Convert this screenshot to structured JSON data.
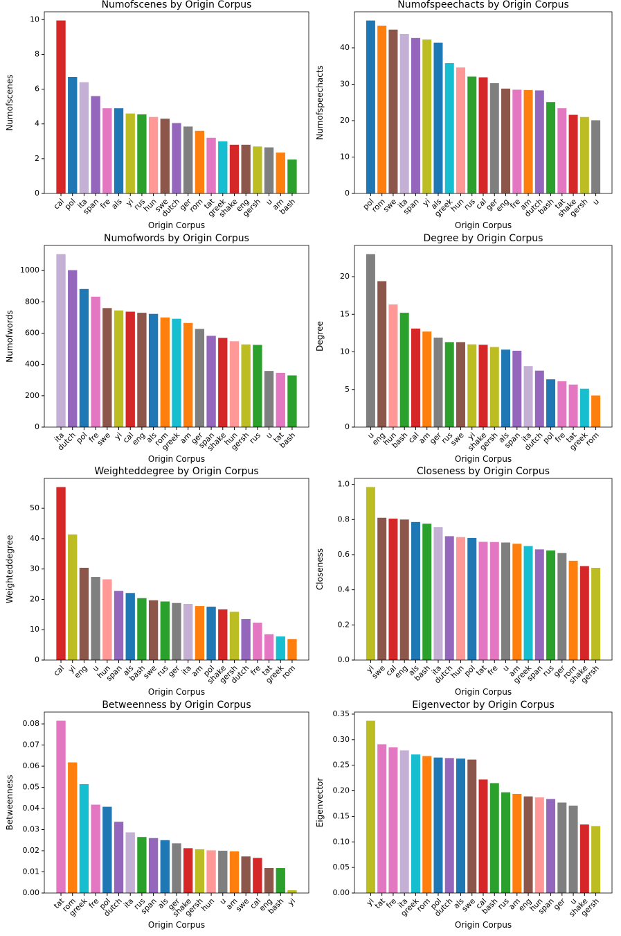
{
  "chart_data": [
    {
      "type": "bar",
      "title": "Numofscenes by Origin Corpus",
      "xlabel": "Origin Corpus",
      "ylabel": "Numofscenes",
      "categories": [
        "cal",
        "pol",
        "ita",
        "span",
        "fre",
        "als",
        "yi",
        "rus",
        "hun",
        "swe",
        "dutch",
        "ger",
        "rom",
        "tat",
        "greek",
        "shake",
        "eng",
        "gersh",
        "u",
        "am",
        "bash"
      ],
      "values": [
        9.95,
        6.7,
        6.4,
        5.6,
        4.9,
        4.9,
        4.6,
        4.55,
        4.4,
        4.3,
        4.05,
        3.85,
        3.6,
        3.2,
        3.0,
        2.8,
        2.8,
        2.7,
        2.65,
        2.35,
        1.95
      ],
      "colors": [
        "#d62728",
        "#1f77b4",
        "#c5b0d5",
        "#9467bd",
        "#e377c2",
        "#1f77b4",
        "#bcbd22",
        "#2ca02c",
        "#ff9896",
        "#8c564b",
        "#9467bd",
        "#7f7f7f",
        "#ff7f0e",
        "#e377c2",
        "#17becf",
        "#d62728",
        "#8c564b",
        "#bcbd22",
        "#7f7f7f",
        "#ff7f0e",
        "#2ca02c"
      ],
      "ylim": [
        0,
        10.45
      ],
      "yticks": [
        0,
        2,
        4,
        6,
        8,
        10
      ]
    },
    {
      "type": "bar",
      "title": "Numofspeechacts by Origin Corpus",
      "xlabel": "Origin Corpus",
      "ylabel": "Numofspeechacts",
      "categories": [
        "pol",
        "rom",
        "swe",
        "ita",
        "span",
        "yi",
        "als",
        "greek",
        "hun",
        "rus",
        "cal",
        "ger",
        "eng",
        "fre",
        "am",
        "dutch",
        "bash",
        "tat",
        "shake",
        "gersh",
        "u"
      ],
      "values": [
        47.5,
        46.1,
        45.0,
        43.8,
        42.7,
        42.3,
        41.4,
        35.8,
        34.6,
        32.1,
        31.9,
        30.3,
        28.8,
        28.5,
        28.4,
        28.3,
        25.1,
        23.4,
        21.6,
        21.0,
        20.1
      ],
      "colors": [
        "#1f77b4",
        "#ff7f0e",
        "#8c564b",
        "#c5b0d5",
        "#9467bd",
        "#bcbd22",
        "#1f77b4",
        "#17becf",
        "#ff9896",
        "#2ca02c",
        "#d62728",
        "#7f7f7f",
        "#8c564b",
        "#e377c2",
        "#ff7f0e",
        "#9467bd",
        "#2ca02c",
        "#e377c2",
        "#d62728",
        "#bcbd22",
        "#7f7f7f"
      ],
      "ylim": [
        0,
        49.9
      ],
      "yticks": [
        0,
        10,
        20,
        30,
        40
      ]
    },
    {
      "type": "bar",
      "title": "Numofwords by Origin Corpus",
      "xlabel": "Origin Corpus",
      "ylabel": "Numofwords",
      "categories": [
        "ita",
        "dutch",
        "pol",
        "fre",
        "swe",
        "yi",
        "cal",
        "eng",
        "als",
        "rom",
        "greek",
        "am",
        "ger",
        "span",
        "shake",
        "hun",
        "gersh",
        "rus",
        "u",
        "tat",
        "bash"
      ],
      "values": [
        1105,
        1002,
        882,
        833,
        760,
        745,
        737,
        730,
        723,
        700,
        692,
        665,
        627,
        583,
        570,
        548,
        528,
        525,
        358,
        346,
        330
      ],
      "colors": [
        "#c5b0d5",
        "#9467bd",
        "#1f77b4",
        "#e377c2",
        "#8c564b",
        "#bcbd22",
        "#d62728",
        "#8c564b",
        "#1f77b4",
        "#ff7f0e",
        "#17becf",
        "#ff7f0e",
        "#7f7f7f",
        "#9467bd",
        "#d62728",
        "#ff9896",
        "#bcbd22",
        "#2ca02c",
        "#7f7f7f",
        "#e377c2",
        "#2ca02c"
      ],
      "ylim": [
        0,
        1160
      ],
      "yticks": [
        0,
        200,
        400,
        600,
        800,
        1000
      ]
    },
    {
      "type": "bar",
      "title": "Degree by Origin Corpus",
      "xlabel": "Origin Corpus",
      "ylabel": "Degree",
      "categories": [
        "u",
        "eng",
        "hun",
        "bash",
        "cal",
        "am",
        "ger",
        "rus",
        "swe",
        "yi",
        "shake",
        "gersh",
        "als",
        "span",
        "ita",
        "dutch",
        "pol",
        "fre",
        "tat",
        "greek",
        "rom"
      ],
      "values": [
        23.0,
        19.4,
        16.3,
        15.2,
        13.1,
        12.7,
        11.9,
        11.3,
        11.3,
        11.0,
        10.95,
        10.65,
        10.3,
        10.15,
        8.1,
        7.5,
        6.35,
        6.1,
        5.65,
        5.1,
        4.2
      ],
      "colors": [
        "#7f7f7f",
        "#8c564b",
        "#ff9896",
        "#2ca02c",
        "#d62728",
        "#ff7f0e",
        "#7f7f7f",
        "#2ca02c",
        "#8c564b",
        "#bcbd22",
        "#d62728",
        "#bcbd22",
        "#1f77b4",
        "#9467bd",
        "#c5b0d5",
        "#9467bd",
        "#1f77b4",
        "#e377c2",
        "#e377c2",
        "#17becf",
        "#ff7f0e"
      ],
      "ylim": [
        0,
        24.15
      ],
      "yticks": [
        0,
        5,
        10,
        15,
        20
      ]
    },
    {
      "type": "bar",
      "title": "Weighteddegree by Origin Corpus",
      "xlabel": "Origin Corpus",
      "ylabel": "Weighteddegree",
      "categories": [
        "cal",
        "yi",
        "eng",
        "u",
        "hun",
        "span",
        "als",
        "bash",
        "swe",
        "rus",
        "ger",
        "ita",
        "am",
        "pol",
        "shake",
        "gersh",
        "dutch",
        "fre",
        "tat",
        "greek",
        "rom"
      ],
      "values": [
        57.0,
        41.4,
        30.4,
        27.4,
        26.6,
        22.8,
        22.1,
        20.4,
        19.7,
        19.3,
        18.8,
        18.5,
        17.8,
        17.6,
        16.7,
        15.9,
        13.5,
        12.3,
        8.5,
        7.8,
        6.9
      ],
      "colors": [
        "#d62728",
        "#bcbd22",
        "#8c564b",
        "#7f7f7f",
        "#ff9896",
        "#9467bd",
        "#1f77b4",
        "#2ca02c",
        "#8c564b",
        "#2ca02c",
        "#7f7f7f",
        "#c5b0d5",
        "#ff7f0e",
        "#1f77b4",
        "#d62728",
        "#bcbd22",
        "#9467bd",
        "#e377c2",
        "#e377c2",
        "#17becf",
        "#ff7f0e"
      ],
      "ylim": [
        0,
        59.85
      ],
      "yticks": [
        0,
        10,
        20,
        30,
        40,
        50
      ]
    },
    {
      "type": "bar",
      "title": "Closeness by Origin Corpus",
      "xlabel": "Origin Corpus",
      "ylabel": "Closeness",
      "categories": [
        "yi",
        "swe",
        "cal",
        "eng",
        "als",
        "bash",
        "ita",
        "dutch",
        "hun",
        "pol",
        "tat",
        "fre",
        "u",
        "am",
        "greek",
        "span",
        "rus",
        "ger",
        "rom",
        "shake",
        "gersh"
      ],
      "values": [
        0.985,
        0.81,
        0.805,
        0.8,
        0.786,
        0.776,
        0.757,
        0.705,
        0.7,
        0.695,
        0.673,
        0.672,
        0.669,
        0.662,
        0.649,
        0.63,
        0.624,
        0.609,
        0.565,
        0.535,
        0.525
      ],
      "colors": [
        "#bcbd22",
        "#8c564b",
        "#d62728",
        "#8c564b",
        "#1f77b4",
        "#2ca02c",
        "#c5b0d5",
        "#9467bd",
        "#ff9896",
        "#1f77b4",
        "#e377c2",
        "#e377c2",
        "#7f7f7f",
        "#ff7f0e",
        "#17becf",
        "#9467bd",
        "#2ca02c",
        "#7f7f7f",
        "#ff7f0e",
        "#d62728",
        "#bcbd22"
      ],
      "ylim": [
        0,
        1.034
      ],
      "yticks": [
        {
          "value": 0,
          "label": "0.0"
        },
        0.2,
        0.4,
        0.6,
        0.8,
        {
          "value": 1,
          "label": "1.0"
        }
      ]
    },
    {
      "type": "bar",
      "title": "Betweenness by Origin Corpus",
      "xlabel": "Origin Corpus",
      "ylabel": "Betweenness",
      "categories": [
        "tat",
        "rom",
        "greek",
        "fre",
        "pol",
        "dutch",
        "ita",
        "rus",
        "span",
        "als",
        "ger",
        "shake",
        "gersh",
        "hun",
        "u",
        "am",
        "swe",
        "cal",
        "eng",
        "bash",
        "yi"
      ],
      "values": [
        0.0815,
        0.0618,
        0.0515,
        0.0418,
        0.0408,
        0.0337,
        0.0287,
        0.0265,
        0.026,
        0.025,
        0.0235,
        0.0212,
        0.0207,
        0.0202,
        0.02,
        0.0197,
        0.0173,
        0.0166,
        0.0118,
        0.0118,
        0.0013
      ],
      "colors": [
        "#e377c2",
        "#ff7f0e",
        "#17becf",
        "#e377c2",
        "#1f77b4",
        "#9467bd",
        "#c5b0d5",
        "#2ca02c",
        "#9467bd",
        "#1f77b4",
        "#7f7f7f",
        "#d62728",
        "#bcbd22",
        "#ff9896",
        "#7f7f7f",
        "#ff7f0e",
        "#8c564b",
        "#d62728",
        "#8c564b",
        "#2ca02c",
        "#bcbd22"
      ],
      "ylim": [
        0,
        0.0856
      ],
      "yticks": [
        {
          "value": 0,
          "label": "0.00"
        },
        0.01,
        0.02,
        0.03,
        0.04,
        0.05,
        0.06,
        0.07,
        0.08
      ]
    },
    {
      "type": "bar",
      "title": "Eigenvector by Origin Corpus",
      "xlabel": "Origin Corpus",
      "ylabel": "Eigenvector",
      "categories": [
        "yi",
        "tat",
        "fre",
        "ita",
        "greek",
        "rom",
        "pol",
        "dutch",
        "als",
        "swe",
        "cal",
        "bash",
        "rus",
        "am",
        "eng",
        "hun",
        "span",
        "ger",
        "u",
        "shake",
        "gersh"
      ],
      "values": [
        0.337,
        0.291,
        0.285,
        0.279,
        0.271,
        0.268,
        0.265,
        0.264,
        0.263,
        0.261,
        0.222,
        0.215,
        0.197,
        0.194,
        0.189,
        0.187,
        0.184,
        0.177,
        0.171,
        0.134,
        0.131
      ],
      "colors": [
        "#bcbd22",
        "#e377c2",
        "#e377c2",
        "#c5b0d5",
        "#17becf",
        "#ff7f0e",
        "#1f77b4",
        "#9467bd",
        "#1f77b4",
        "#8c564b",
        "#d62728",
        "#2ca02c",
        "#2ca02c",
        "#ff7f0e",
        "#8c564b",
        "#ff9896",
        "#9467bd",
        "#7f7f7f",
        "#7f7f7f",
        "#d62728",
        "#bcbd22"
      ],
      "ylim": [
        0,
        0.354
      ],
      "yticks": [
        {
          "value": 0,
          "label": "0.00"
        },
        0.05,
        {
          "value": 0.1,
          "label": "0.10"
        },
        0.15,
        {
          "value": 0.2,
          "label": "0.20"
        },
        0.25,
        {
          "value": 0.3,
          "label": "0.30"
        },
        0.35
      ]
    }
  ]
}
